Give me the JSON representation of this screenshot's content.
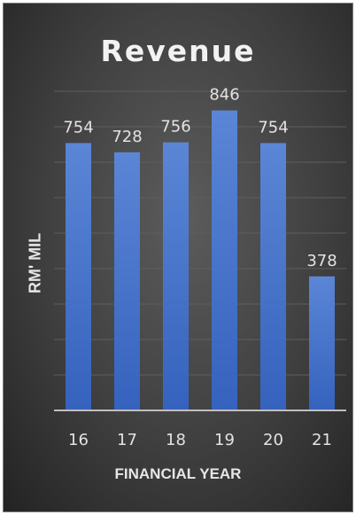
{
  "chart_data": {
    "type": "bar",
    "title": "Revenue",
    "xlabel": "FINANCIAL YEAR",
    "ylabel": "RM' MIL",
    "categories": [
      "16",
      "17",
      "18",
      "19",
      "20",
      "21"
    ],
    "values": [
      754,
      728,
      756,
      846,
      754,
      378
    ],
    "data_labels": [
      "754",
      "728",
      "756",
      "846",
      "754",
      "378"
    ],
    "ylim": [
      0,
      900
    ],
    "grid": true,
    "legend": "none",
    "bar_color": "#4472c4",
    "background_color": "#404040"
  }
}
